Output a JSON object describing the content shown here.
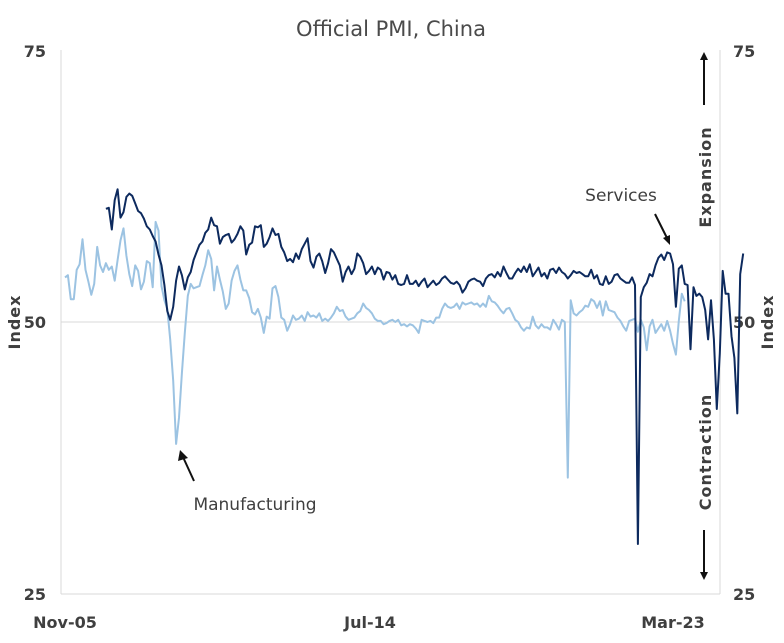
{
  "chart_data": {
    "type": "line",
    "title": "Official PMI, China",
    "ylabel_left": "Index",
    "ylabel_right": "Index",
    "ylim": [
      25,
      75
    ],
    "yticks": [
      "25",
      "50",
      "75"
    ],
    "xticks": [
      "Nov-05",
      "Jul-14",
      "Mar-23"
    ],
    "x_start": "2005-11",
    "x_end": "2023-03",
    "grid_y": [
      50
    ],
    "annotations": {
      "services": "Services",
      "manufacturing": "Manufacturing",
      "expansion": "Expansion",
      "contraction": "Contraction"
    },
    "colors": {
      "services": "#0d2a5e",
      "manufacturing": "#9cc3e2",
      "grid": "#d9d9d9"
    },
    "series": [
      {
        "key": "services",
        "start": "2007-01",
        "values": [
          60.4,
          60.5,
          58.5,
          61.2,
          62.2,
          59.6,
          60.1,
          61.5,
          61.8,
          61.6,
          60.9,
          60.2,
          60.0,
          59.5,
          58.8,
          58.5,
          57.9,
          57.4,
          56.2,
          55.2,
          53.4,
          51.0,
          50.2,
          51.4,
          53.8,
          55.1,
          54.3,
          53.0,
          54.1,
          54.6,
          55.7,
          56.4,
          57.1,
          57.4,
          58.2,
          58.5,
          59.6,
          58.9,
          58.8,
          57.2,
          57.8,
          58.0,
          58.1,
          57.3,
          57.6,
          58.1,
          58.8,
          58.4,
          56.2,
          57.1,
          57.3,
          58.8,
          58.7,
          58.9,
          56.9,
          57.2,
          57.8,
          58.6,
          58.0,
          58.1,
          56.9,
          56.4,
          55.6,
          55.8,
          55.5,
          56.3,
          55.8,
          56.7,
          57.2,
          57.7,
          55.6,
          55.0,
          56.0,
          56.3,
          55.6,
          54.5,
          55.4,
          56.7,
          56.4,
          55.8,
          55.2,
          53.7,
          54.6,
          55.1,
          54.4,
          54.9,
          56.3,
          56.0,
          55.4,
          54.4,
          54.7,
          55.1,
          54.4,
          55.0,
          54.8,
          53.9,
          54.6,
          54.5,
          53.9,
          54.3,
          53.5,
          53.4,
          53.5,
          54.3,
          53.5,
          53.5,
          53.8,
          53.3,
          53.7,
          54.0,
          53.2,
          53.5,
          53.8,
          53.4,
          53.6,
          54.0,
          54.2,
          53.9,
          53.6,
          53.5,
          53.7,
          53.4,
          52.7,
          53.1,
          53.7,
          53.9,
          54.0,
          53.8,
          53.7,
          53.3,
          54.0,
          54.3,
          54.4,
          54.1,
          54.6,
          54.2,
          55.1,
          54.5,
          54.0,
          54.0,
          54.5,
          54.9,
          54.6,
          55.1,
          54.6,
          55.3,
          54.2,
          54.6,
          55.0,
          54.2,
          54.5,
          54.0,
          54.8,
          54.9,
          54.5,
          55.0,
          54.6,
          54.4,
          54.0,
          54.3,
          54.7,
          54.5,
          54.6,
          54.4,
          54.2,
          54.2,
          54.8,
          54.0,
          54.3,
          53.5,
          53.4,
          54.2,
          53.5,
          53.7,
          54.3,
          54.4,
          54.0,
          53.8,
          53.6,
          53.6,
          54.1,
          53.4,
          29.6,
          52.3,
          53.2,
          53.6,
          54.4,
          54.2,
          55.2,
          55.9,
          56.2,
          55.7,
          56.4,
          56.3,
          55.3,
          51.4,
          54.9,
          55.2,
          53.5,
          53.4,
          47.5,
          53.2,
          52.4,
          52.6,
          52.3,
          51.1,
          48.4,
          52.0,
          48.4,
          42.0,
          47.1,
          54.7,
          52.6,
          52.6,
          48.7,
          46.7,
          41.6,
          54.4,
          56.3
        ]
      },
      {
        "key": "manufacturing",
        "start": "2005-11",
        "values": [
          54.1,
          54.3,
          52.1,
          52.1,
          54.8,
          55.3,
          57.6,
          54.8,
          53.7,
          52.5,
          53.5,
          56.9,
          55.2,
          54.6,
          55.4,
          54.8,
          55.1,
          53.8,
          55.7,
          57.5,
          58.6,
          56.1,
          54.4,
          53.3,
          55.2,
          54.7,
          53.0,
          53.7,
          55.6,
          55.4,
          53.2,
          59.2,
          58.4,
          53.3,
          52.0,
          51.2,
          48.4,
          44.6,
          38.8,
          41.2,
          45.3,
          49.0,
          52.4,
          53.5,
          53.1,
          53.2,
          53.3,
          54.3,
          55.2,
          56.6,
          55.8,
          52.9,
          55.1,
          53.9,
          52.8,
          51.2,
          51.7,
          53.8,
          54.7,
          55.2,
          53.9,
          52.9,
          52.9,
          52.2,
          50.9,
          50.7,
          51.2,
          50.4,
          49.0,
          50.5,
          50.3,
          53.1,
          53.3,
          52.3,
          50.4,
          50.2,
          49.2,
          49.8,
          50.6,
          50.2,
          50.3,
          50.6,
          50.1,
          50.9,
          50.5,
          50.6,
          50.4,
          50.8,
          50.1,
          50.3,
          50.1,
          50.4,
          50.8,
          51.4,
          51.0,
          51.1,
          50.5,
          50.2,
          50.3,
          50.4,
          50.8,
          51.0,
          51.7,
          51.3,
          51.1,
          50.8,
          50.3,
          50.1,
          50.1,
          49.8,
          49.9,
          50.1,
          50.2,
          50.0,
          50.2,
          49.7,
          49.8,
          49.6,
          49.8,
          49.7,
          49.4,
          49.0,
          50.2,
          50.1,
          50.0,
          50.1,
          49.9,
          50.4,
          50.4,
          51.2,
          51.7,
          51.4,
          51.3,
          51.4,
          51.7,
          51.2,
          51.8,
          51.6,
          51.7,
          51.8,
          51.6,
          51.7,
          51.4,
          51.7,
          51.4,
          52.4,
          51.9,
          51.8,
          51.5,
          51.1,
          50.8,
          51.2,
          51.3,
          50.8,
          50.2,
          50.0,
          49.5,
          49.2,
          49.5,
          49.4,
          50.5,
          49.7,
          49.4,
          49.8,
          49.5,
          49.5,
          49.3,
          50.2,
          49.8,
          49.3,
          50.2,
          50.0,
          35.7,
          52.0,
          50.8,
          50.6,
          50.9,
          51.1,
          51.5,
          51.4,
          52.1,
          51.9,
          51.3,
          51.9,
          50.6,
          51.9,
          51.1,
          51.0,
          50.9,
          50.4,
          50.1,
          49.6,
          49.2,
          50.1,
          50.2,
          50.3,
          49.1,
          50.2,
          49.5,
          47.4,
          49.6,
          50.2,
          49.0,
          49.4,
          49.8,
          49.2,
          50.1,
          49.2,
          48.0,
          47.0,
          50.1,
          52.6,
          51.9
        ]
      }
    ]
  }
}
